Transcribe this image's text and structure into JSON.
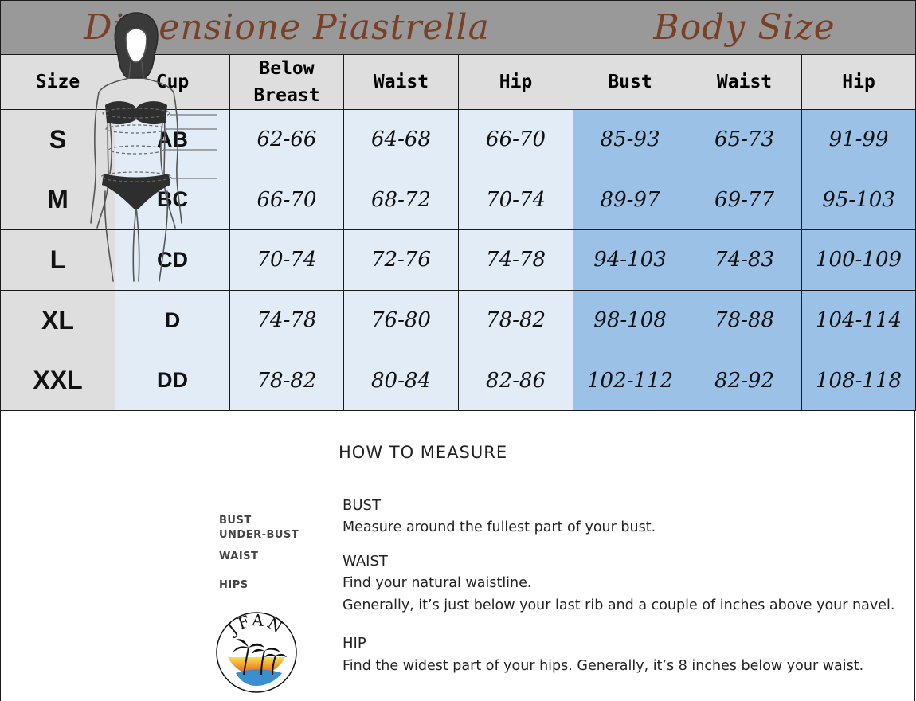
{
  "chart": {
    "title_left": "Dimensione Piastrella",
    "title_right": "Body Size",
    "headers": {
      "size": "Size",
      "cup": "Cup",
      "below_breast_1": "Below",
      "below_breast_2": "Breast",
      "waist": "Waist",
      "hip": "Hip",
      "bust": "Bust",
      "body_waist": "Waist",
      "body_hip": "Hip"
    },
    "rows": [
      {
        "size": "S",
        "cup": "AB",
        "below_breast": "62-66",
        "waist": "64-68",
        "hip": "66-70",
        "bust": "85-93",
        "body_waist": "65-73",
        "body_hip": "91-99"
      },
      {
        "size": "M",
        "cup": "BC",
        "below_breast": "66-70",
        "waist": "68-72",
        "hip": "70-74",
        "bust": "89-97",
        "body_waist": "69-77",
        "body_hip": "95-103"
      },
      {
        "size": "L",
        "cup": "CD",
        "below_breast": "70-74",
        "waist": "72-76",
        "hip": "74-78",
        "bust": "94-103",
        "body_waist": "74-83",
        "body_hip": "100-109"
      },
      {
        "size": "XL",
        "cup": "D",
        "below_breast": "74-78",
        "waist": "76-80",
        "hip": "78-82",
        "bust": "98-108",
        "body_waist": "78-88",
        "body_hip": "104-114"
      },
      {
        "size": "XXL",
        "cup": "DD",
        "below_breast": "78-82",
        "waist": "80-84",
        "hip": "82-86",
        "bust": "102-112",
        "body_waist": "82-92",
        "body_hip": "108-118"
      }
    ]
  },
  "figure": {
    "labels": {
      "bust": "BUST",
      "under_bust": "UNDER-BUST",
      "waist": "WAIST",
      "hips": "HIPS"
    }
  },
  "logo": {
    "text": "JFAN"
  },
  "guide": {
    "title": "HOW TO MEASURE",
    "bust_title": "BUST",
    "bust_text": "Measure around the fullest part of your bust.",
    "waist_title": "WAIST",
    "waist_text_1": "Find your natural waistline.",
    "waist_text_2": "Generally, it’s just below your last rib and a couple of inches above your navel.",
    "hip_title": "HIP",
    "hip_text": "Find the widest part of your hips. Generally, it’s 8 inches below your waist."
  }
}
